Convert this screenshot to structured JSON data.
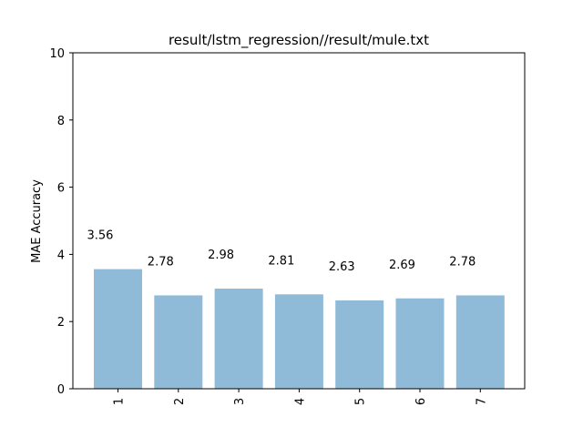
{
  "chart_data": {
    "type": "bar",
    "title": "result/lstm_regression//result/mule.txt",
    "xlabel": "",
    "ylabel": "MAE Accuracy",
    "categories": [
      "1",
      "2",
      "3",
      "4",
      "5",
      "6",
      "7"
    ],
    "values": [
      3.56,
      2.78,
      2.98,
      2.81,
      2.63,
      2.69,
      2.78
    ],
    "data_labels": [
      "3.56",
      "2.78",
      "2.98",
      "2.81",
      "2.63",
      "2.69",
      "2.78"
    ],
    "ylim": [
      0,
      10
    ],
    "yticks": [
      "0",
      "2",
      "4",
      "6",
      "8",
      "10"
    ],
    "bar_color": "#8fbbd9",
    "grid": false,
    "legend": "none"
  }
}
